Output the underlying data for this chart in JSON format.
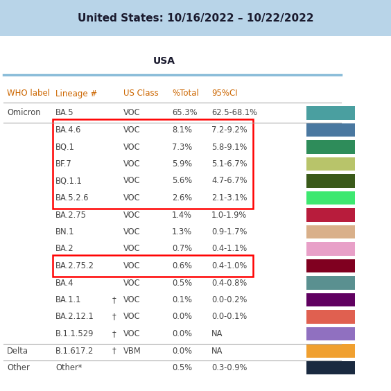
{
  "title": "United States: 10/16/2022 – 10/22/2022",
  "subtitle": "USA",
  "title_bg": "#b8d4e8",
  "header_line_color": "#8bbdd9",
  "rows": [
    {
      "who": "Omicron",
      "lineage": "BA.5",
      "dagger": false,
      "us_class": "VOC",
      "pct": "65.3%",
      "ci": "62.5-68.1%",
      "color": "#4a9fa0",
      "red_box": false
    },
    {
      "who": "",
      "lineage": "BA.4.6",
      "dagger": false,
      "us_class": "VOC",
      "pct": "8.1%",
      "ci": "7.2-9.2%",
      "color": "#4a78a0",
      "red_box": true
    },
    {
      "who": "",
      "lineage": "BQ.1",
      "dagger": false,
      "us_class": "VOC",
      "pct": "7.3%",
      "ci": "5.8-9.1%",
      "color": "#2e8c5a",
      "red_box": true
    },
    {
      "who": "",
      "lineage": "BF.7",
      "dagger": false,
      "us_class": "VOC",
      "pct": "5.9%",
      "ci": "5.1-6.7%",
      "color": "#b8c46a",
      "red_box": true
    },
    {
      "who": "",
      "lineage": "BQ.1.1",
      "dagger": false,
      "us_class": "VOC",
      "pct": "5.6%",
      "ci": "4.7-6.7%",
      "color": "#3a5a1a",
      "red_box": true
    },
    {
      "who": "",
      "lineage": "BA.5.2.6",
      "dagger": false,
      "us_class": "VOC",
      "pct": "2.6%",
      "ci": "2.1-3.1%",
      "color": "#3de870",
      "red_box": true
    },
    {
      "who": "",
      "lineage": "BA.2.75",
      "dagger": false,
      "us_class": "VOC",
      "pct": "1.4%",
      "ci": "1.0-1.9%",
      "color": "#b81c3c",
      "red_box": false
    },
    {
      "who": "",
      "lineage": "BN.1",
      "dagger": false,
      "us_class": "VOC",
      "pct": "1.3%",
      "ci": "0.9-1.7%",
      "color": "#d9b08a",
      "red_box": false
    },
    {
      "who": "",
      "lineage": "BA.2",
      "dagger": false,
      "us_class": "VOC",
      "pct": "0.7%",
      "ci": "0.4-1.1%",
      "color": "#e8a0c8",
      "red_box": false
    },
    {
      "who": "",
      "lineage": "BA.2.75.2",
      "dagger": false,
      "us_class": "VOC",
      "pct": "0.6%",
      "ci": "0.4-1.0%",
      "color": "#800020",
      "red_box": true
    },
    {
      "who": "",
      "lineage": "BA.4",
      "dagger": false,
      "us_class": "VOC",
      "pct": "0.5%",
      "ci": "0.4-0.8%",
      "color": "#5a9090",
      "red_box": false
    },
    {
      "who": "",
      "lineage": "BA.1.1",
      "dagger": true,
      "us_class": "VOC",
      "pct": "0.1%",
      "ci": "0.0-0.2%",
      "color": "#600060",
      "red_box": false
    },
    {
      "who": "",
      "lineage": "BA.2.12.1",
      "dagger": true,
      "us_class": "VOC",
      "pct": "0.0%",
      "ci": "0.0-0.1%",
      "color": "#e06050",
      "red_box": false
    },
    {
      "who": "",
      "lineage": "B.1.1.529",
      "dagger": true,
      "us_class": "VOC",
      "pct": "0.0%",
      "ci": "NA",
      "color": "#9070c0",
      "red_box": false
    },
    {
      "who": "Delta",
      "lineage": "B.1.617.2",
      "dagger": true,
      "us_class": "VBM",
      "pct": "0.0%",
      "ci": "NA",
      "color": "#f0a030",
      "red_box": false
    },
    {
      "who": "Other",
      "lineage": "Other*",
      "dagger": false,
      "us_class": "",
      "pct": "0.5%",
      "ci": "0.3-0.9%",
      "color": "#1a2a40",
      "red_box": false
    }
  ],
  "header_orange": "#cc6600",
  "text_color": "#444444",
  "bg_color": "#ffffff",
  "fig_w": 5.64,
  "fig_h": 5.64,
  "dpi": 100
}
